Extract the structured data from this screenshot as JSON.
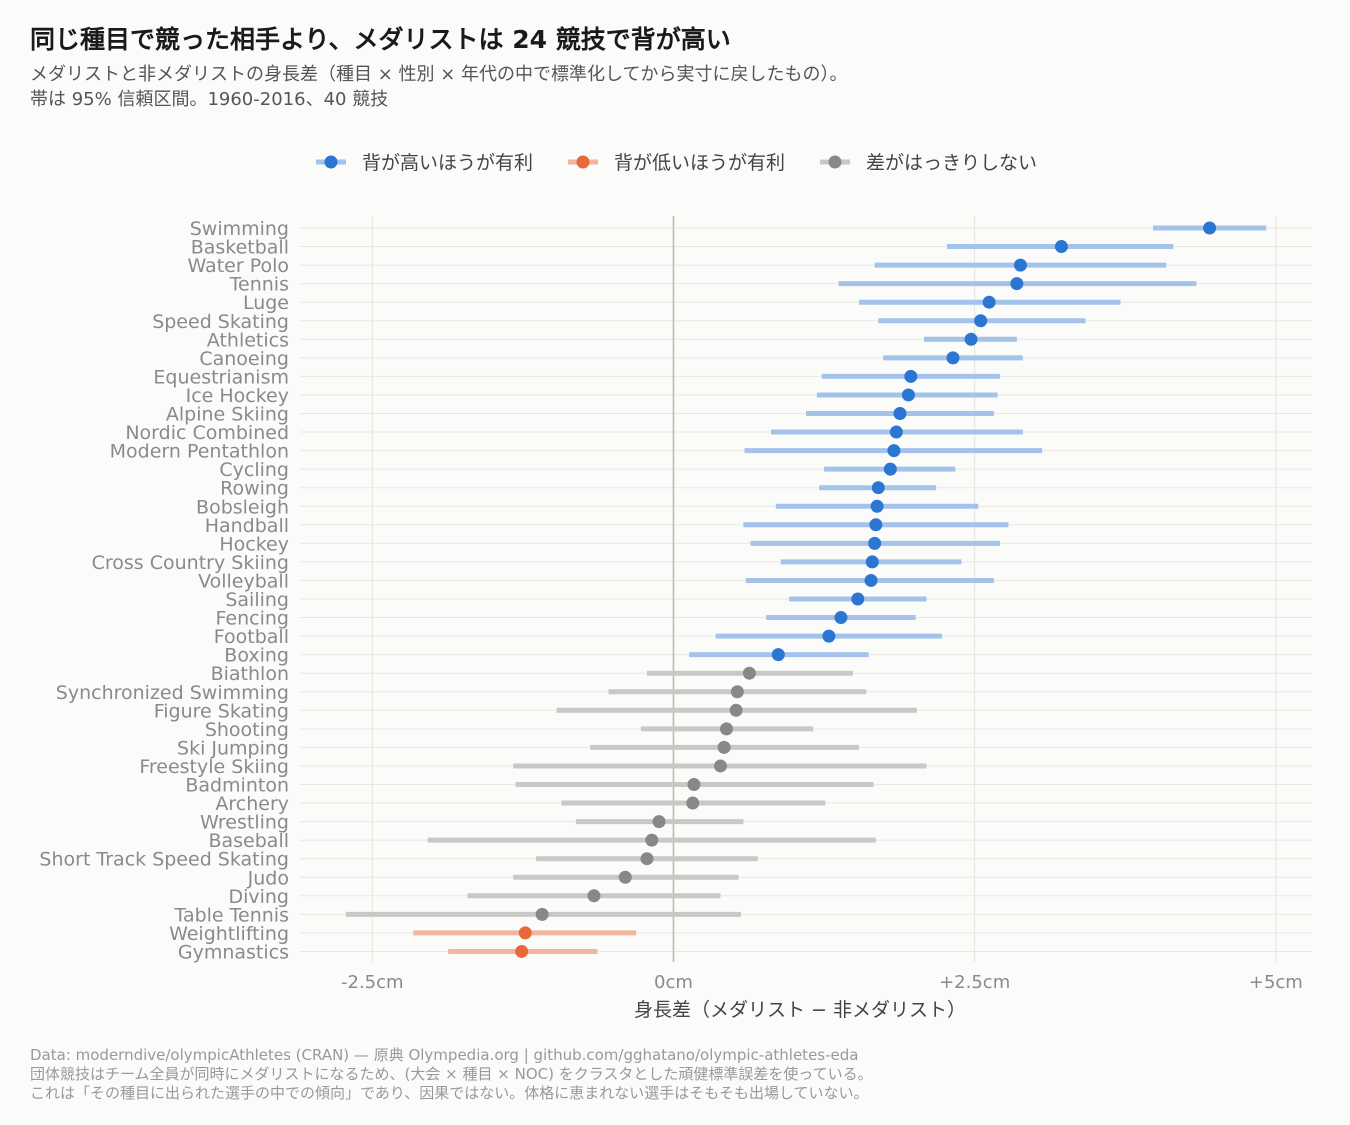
{
  "title": "同じ種目で競った相手より、メダリストは 24 競技で背が高い",
  "subtitle_lines": [
    "メダリストと非メダリストの身長差（種目 × 性別 × 年代の中で標準化してから実寸に戻したもの）。",
    "帯は 95% 信頼区間。1960-2016、40 競技"
  ],
  "caption_lines": [
    "Data: moderndive/olympicAthletes (CRAN) — 原典 Olympedia.org | github.com/gghatano/olympic-athletes-eda",
    "団体競技はチーム全員が同時にメダリストになるため、(大会 × 種目 × NOC) をクラスタとした頑健標準誤差を使っている。",
    "これは「その種目に出られた選手の中での傾向」であり、因果ではない。体格に恵まれない選手はそもそも出場していない。"
  ],
  "colors": {
    "taller": "#2a76d2",
    "shorter": "#e8693a",
    "unclear": "#888888",
    "background": "#fbfbf9"
  },
  "chart_data": {
    "type": "dot-interval",
    "xlabel": "身長差（メダリスト − 非メダリスト）",
    "ylabel": "",
    "xlim": [
      -3.1,
      5.3
    ],
    "xticks": [
      {
        "value": -2.5,
        "label": "-2.5cm"
      },
      {
        "value": 0,
        "label": "0cm"
      },
      {
        "value": 2.5,
        "label": "+2.5cm"
      },
      {
        "value": 5,
        "label": "+5cm"
      }
    ],
    "grid": true,
    "reference_line": 0,
    "legend": {
      "position": "top",
      "entries": [
        {
          "key": "taller",
          "label": "背が高いほうが有利"
        },
        {
          "key": "shorter",
          "label": "背が低いほうが有利"
        },
        {
          "key": "unclear",
          "label": "差がはっきりしない"
        }
      ]
    },
    "rows": [
      {
        "sport": "Swimming",
        "estimate": 4.45,
        "low": 3.98,
        "high": 4.92,
        "group": "taller"
      },
      {
        "sport": "Basketball",
        "estimate": 3.22,
        "low": 2.27,
        "high": 4.15,
        "group": "taller"
      },
      {
        "sport": "Water Polo",
        "estimate": 2.88,
        "low": 1.67,
        "high": 4.09,
        "group": "taller"
      },
      {
        "sport": "Tennis",
        "estimate": 2.85,
        "low": 1.37,
        "high": 4.34,
        "group": "taller"
      },
      {
        "sport": "Luge",
        "estimate": 2.62,
        "low": 1.54,
        "high": 3.71,
        "group": "taller"
      },
      {
        "sport": "Speed Skating",
        "estimate": 2.55,
        "low": 1.7,
        "high": 3.42,
        "group": "taller"
      },
      {
        "sport": "Athletics",
        "estimate": 2.47,
        "low": 2.08,
        "high": 2.85,
        "group": "taller"
      },
      {
        "sport": "Canoeing",
        "estimate": 2.32,
        "low": 1.74,
        "high": 2.9,
        "group": "taller"
      },
      {
        "sport": "Equestrianism",
        "estimate": 1.97,
        "low": 1.23,
        "high": 2.71,
        "group": "taller"
      },
      {
        "sport": "Ice Hockey",
        "estimate": 1.95,
        "low": 1.19,
        "high": 2.69,
        "group": "taller"
      },
      {
        "sport": "Alpine Skiing",
        "estimate": 1.88,
        "low": 1.1,
        "high": 2.66,
        "group": "taller"
      },
      {
        "sport": "Nordic Combined",
        "estimate": 1.85,
        "low": 0.81,
        "high": 2.9,
        "group": "taller"
      },
      {
        "sport": "Modern Pentathlon",
        "estimate": 1.83,
        "low": 0.59,
        "high": 3.06,
        "group": "taller"
      },
      {
        "sport": "Cycling",
        "estimate": 1.8,
        "low": 1.25,
        "high": 2.34,
        "group": "taller"
      },
      {
        "sport": "Rowing",
        "estimate": 1.7,
        "low": 1.21,
        "high": 2.18,
        "group": "taller"
      },
      {
        "sport": "Bobsleigh",
        "estimate": 1.69,
        "low": 0.85,
        "high": 2.53,
        "group": "taller"
      },
      {
        "sport": "Handball",
        "estimate": 1.68,
        "low": 0.58,
        "high": 2.78,
        "group": "taller"
      },
      {
        "sport": "Hockey",
        "estimate": 1.67,
        "low": 0.64,
        "high": 2.71,
        "group": "taller"
      },
      {
        "sport": "Cross Country Skiing",
        "estimate": 1.65,
        "low": 0.89,
        "high": 2.39,
        "group": "taller"
      },
      {
        "sport": "Volleyball",
        "estimate": 1.64,
        "low": 0.6,
        "high": 2.66,
        "group": "taller"
      },
      {
        "sport": "Sailing",
        "estimate": 1.53,
        "low": 0.96,
        "high": 2.1,
        "group": "taller"
      },
      {
        "sport": "Fencing",
        "estimate": 1.39,
        "low": 0.77,
        "high": 2.01,
        "group": "taller"
      },
      {
        "sport": "Football",
        "estimate": 1.29,
        "low": 0.35,
        "high": 2.23,
        "group": "taller"
      },
      {
        "sport": "Boxing",
        "estimate": 0.87,
        "low": 0.13,
        "high": 1.62,
        "group": "taller"
      },
      {
        "sport": "Biathlon",
        "estimate": 0.63,
        "low": -0.22,
        "high": 1.49,
        "group": "unclear"
      },
      {
        "sport": "Synchronized Swimming",
        "estimate": 0.53,
        "low": -0.54,
        "high": 1.6,
        "group": "unclear"
      },
      {
        "sport": "Figure Skating",
        "estimate": 0.52,
        "low": -0.97,
        "high": 2.02,
        "group": "unclear"
      },
      {
        "sport": "Shooting",
        "estimate": 0.44,
        "low": -0.27,
        "high": 1.16,
        "group": "unclear"
      },
      {
        "sport": "Ski Jumping",
        "estimate": 0.42,
        "low": -0.69,
        "high": 1.54,
        "group": "unclear"
      },
      {
        "sport": "Freestyle Skiing",
        "estimate": 0.39,
        "low": -1.33,
        "high": 2.1,
        "group": "unclear"
      },
      {
        "sport": "Badminton",
        "estimate": 0.17,
        "low": -1.31,
        "high": 1.66,
        "group": "unclear"
      },
      {
        "sport": "Archery",
        "estimate": 0.16,
        "low": -0.93,
        "high": 1.26,
        "group": "unclear"
      },
      {
        "sport": "Wrestling",
        "estimate": -0.12,
        "low": -0.81,
        "high": 0.58,
        "group": "unclear"
      },
      {
        "sport": "Baseball",
        "estimate": -0.18,
        "low": -2.04,
        "high": 1.68,
        "group": "unclear"
      },
      {
        "sport": "Short Track Speed Skating",
        "estimate": -0.22,
        "low": -1.14,
        "high": 0.7,
        "group": "unclear"
      },
      {
        "sport": "Judo",
        "estimate": -0.4,
        "low": -1.33,
        "high": 0.54,
        "group": "unclear"
      },
      {
        "sport": "Diving",
        "estimate": -0.66,
        "low": -1.71,
        "high": 0.39,
        "group": "unclear"
      },
      {
        "sport": "Table Tennis",
        "estimate": -1.09,
        "low": -2.72,
        "high": 0.56,
        "group": "unclear"
      },
      {
        "sport": "Weightlifting",
        "estimate": -1.23,
        "low": -2.16,
        "high": -0.31,
        "group": "shorter"
      },
      {
        "sport": "Gymnastics",
        "estimate": -1.26,
        "low": -1.87,
        "high": -0.63,
        "group": "shorter"
      }
    ]
  }
}
